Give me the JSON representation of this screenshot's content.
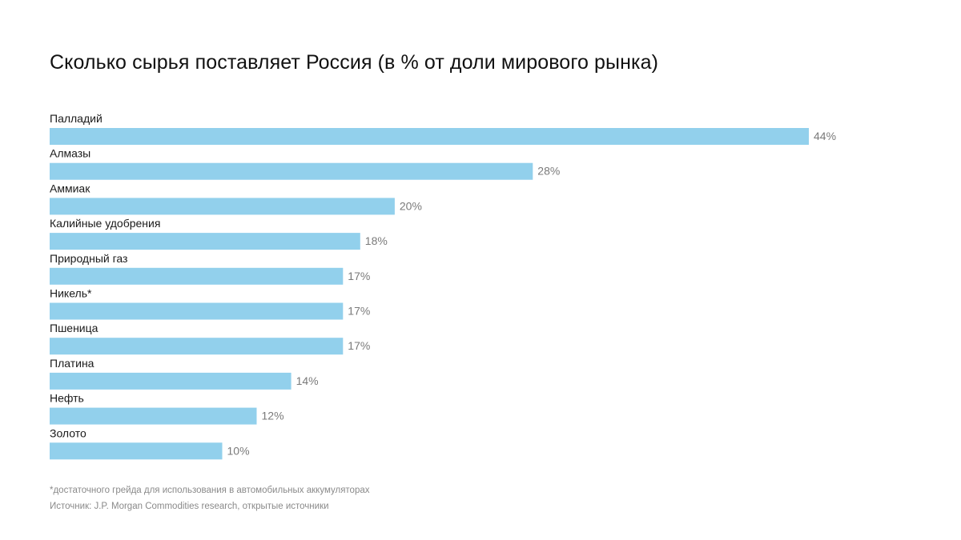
{
  "chart_data": {
    "type": "bar",
    "orientation": "horizontal",
    "title": "Сколько сырья поставляет Россия (в % от доли мирового рынка)",
    "categories": [
      "Палладий",
      "Алмазы",
      "Аммиак",
      "Калийные удобрения",
      "Природный газ",
      "Никель*",
      "Пшеница",
      "Платина",
      "Нефть",
      "Золото"
    ],
    "values": [
      44,
      28,
      20,
      18,
      17,
      17,
      17,
      14,
      12,
      10
    ],
    "value_labels": [
      "44%",
      "28%",
      "20%",
      "18%",
      "17%",
      "17%",
      "17%",
      "14%",
      "12%",
      "10%"
    ],
    "unit": "%",
    "xlabel": "",
    "ylabel": "",
    "xlim": [
      0,
      44
    ],
    "grid": false,
    "legend": "none",
    "bar_color": "#92d0ec"
  },
  "footnote": "*достаточного  грейда для использования  в автомобильных  аккумуляторах",
  "source": "Источник:  J.P. Morgan  Commodities  research,  открытые  источники"
}
